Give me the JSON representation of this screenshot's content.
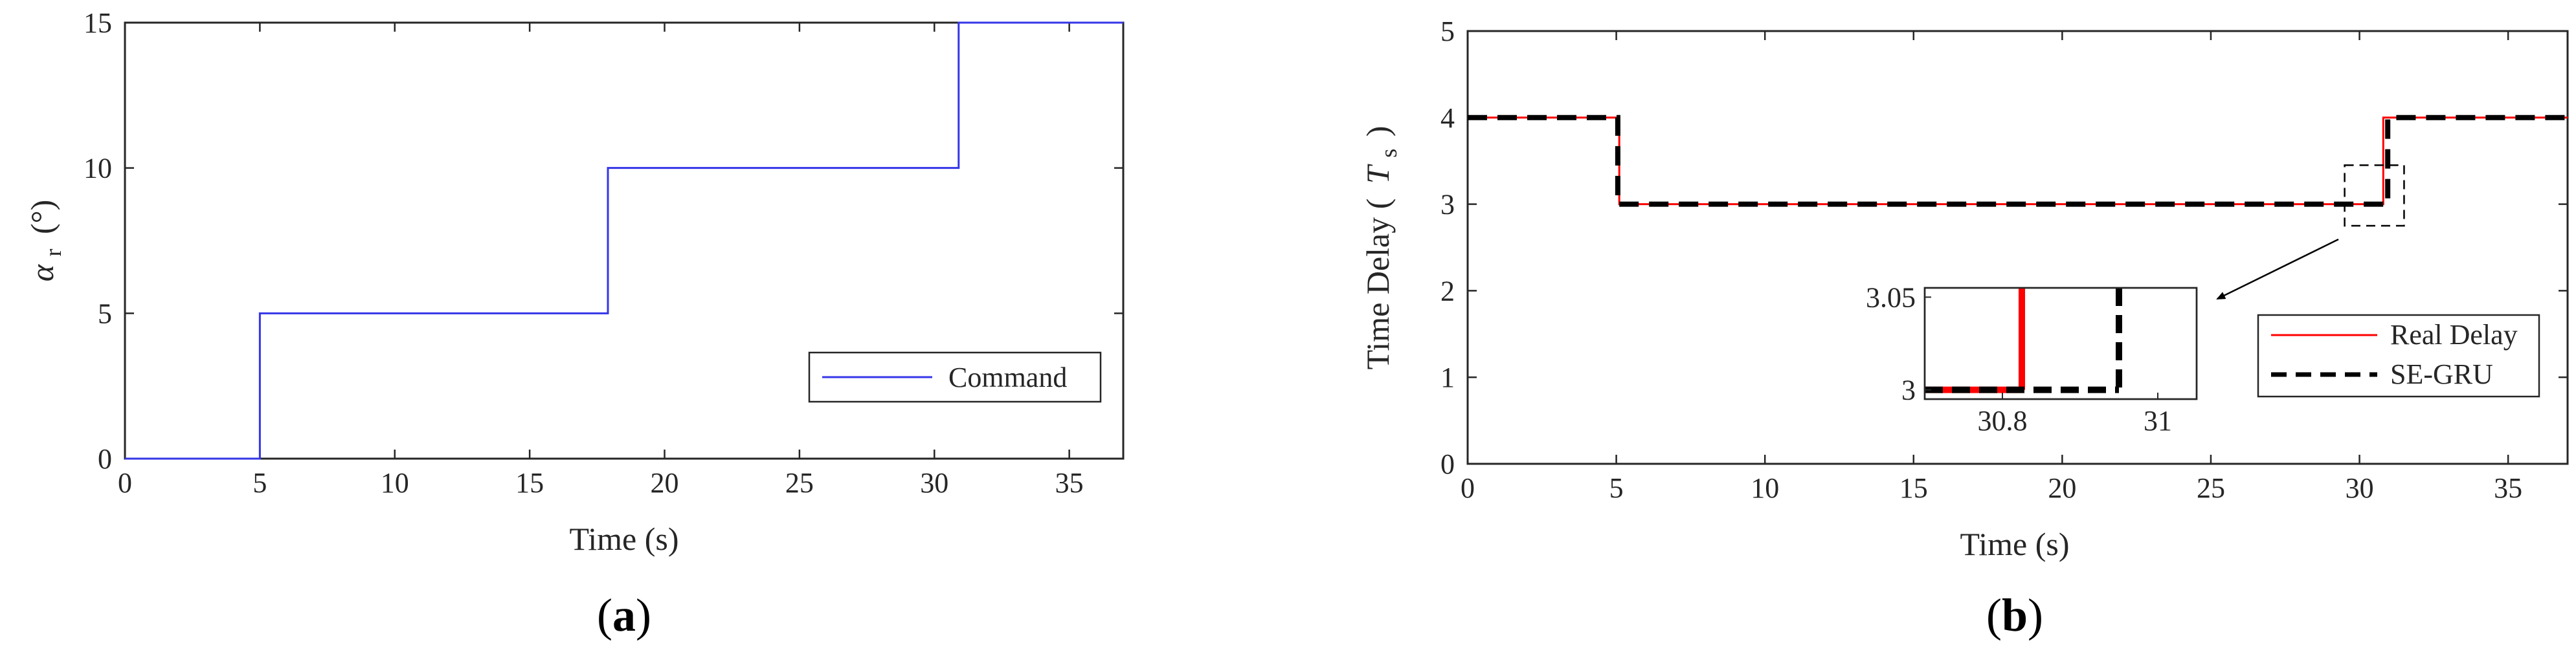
{
  "chart_data": [
    {
      "panel": "a",
      "type": "line",
      "caption_letter": "a",
      "xlabel": "Time (s)",
      "ylabel_symbol": "α",
      "ylabel_sub": "r",
      "ylabel_unit": "(°)",
      "xlim": [
        0,
        37
      ],
      "ylim": [
        0,
        15
      ],
      "xticks": [
        0,
        5,
        10,
        15,
        20,
        25,
        30,
        35
      ],
      "yticks": [
        0,
        5,
        10,
        15
      ],
      "legend": [
        "Command"
      ],
      "legend_position": "lower-right",
      "series": [
        {
          "name": "Command",
          "color": "#3535e8",
          "style": "solid",
          "x": [
            0,
            5,
            5,
            17.9,
            17.9,
            30.9,
            30.9,
            37
          ],
          "y": [
            0,
            0,
            5,
            5,
            10,
            10,
            15,
            15
          ]
        }
      ]
    },
    {
      "panel": "b",
      "type": "line",
      "caption_letter": "b",
      "xlabel": "Time (s)",
      "ylabel_main": "Time Delay (",
      "ylabel_symbol": "T",
      "ylabel_sub": "s",
      "ylabel_close": ")",
      "xlim": [
        0,
        37
      ],
      "ylim": [
        0,
        5
      ],
      "xticks": [
        0,
        5,
        10,
        15,
        20,
        25,
        30,
        35
      ],
      "yticks": [
        0,
        1,
        2,
        3,
        4,
        5
      ],
      "legend": [
        "Real Delay",
        "SE-GRU"
      ],
      "legend_position": "lower-right",
      "series": [
        {
          "name": "Real Delay",
          "color": "#ff0000",
          "style": "solid",
          "x": [
            0,
            5.1,
            5.1,
            30.8,
            30.8,
            37
          ],
          "y": [
            4,
            4,
            3,
            3,
            4,
            4
          ]
        },
        {
          "name": "SE-GRU",
          "color": "#000000",
          "style": "dashed",
          "x": [
            0,
            5.05,
            5.05,
            30.95,
            30.95,
            37
          ],
          "y": [
            4,
            4,
            3,
            3,
            4,
            4
          ]
        }
      ],
      "zoom_box": {
        "x": [
          29.5,
          31.5
        ],
        "y": [
          2.75,
          3.45
        ]
      },
      "inset": {
        "xlim": [
          30.7,
          31.05
        ],
        "ylim": [
          2.995,
          3.055
        ],
        "xticks": [
          30.8,
          31
        ],
        "yticks": [
          3,
          3.05
        ],
        "real_x": 30.825,
        "segru_x": 30.95
      }
    }
  ]
}
